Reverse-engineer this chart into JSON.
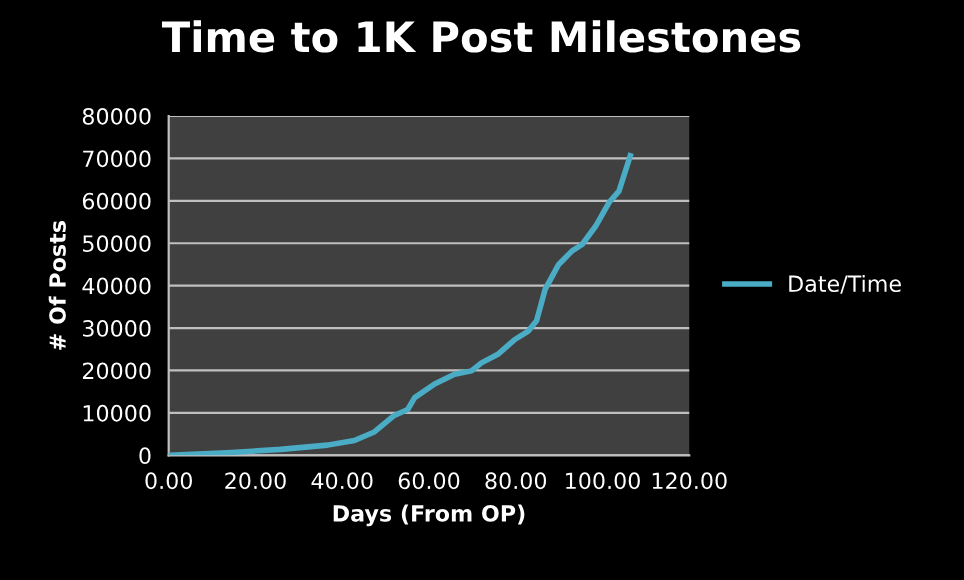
{
  "chart_data": {
    "type": "line",
    "title": "Time to 1K Post Milestones",
    "xlabel": "Days (From OP)",
    "ylabel": "# Of Posts",
    "series": [
      {
        "name": "Date/Time",
        "color": "#4bacc6",
        "x": [
          0,
          13.4,
          25.8,
          36.6,
          42.8,
          47.4,
          52.0,
          55.1,
          56.7,
          61.3,
          65.9,
          69.8,
          72.1,
          76.0,
          79.8,
          82.9,
          84.8,
          86.8,
          89.9,
          93.0,
          95.3,
          98.4,
          101.5,
          103.8,
          106.4
        ],
        "values": [
          0,
          600,
          1400,
          2400,
          3500,
          5500,
          9400,
          10800,
          13600,
          16800,
          19100,
          19900,
          21800,
          23900,
          27300,
          29300,
          31700,
          39200,
          45000,
          48200,
          49700,
          54000,
          59600,
          62300,
          70600
        ]
      }
    ],
    "xlim": [
      0,
      120
    ],
    "xticks": [
      {
        "value": 0,
        "label": "0.00"
      },
      {
        "value": 20,
        "label": "20.00"
      },
      {
        "value": 40,
        "label": "40.00"
      },
      {
        "value": 60,
        "label": "60.00"
      },
      {
        "value": 80,
        "label": "80.00"
      },
      {
        "value": 100,
        "label": "100.00"
      },
      {
        "value": 120,
        "label": "120.00"
      }
    ],
    "ylim": [
      0,
      80000
    ],
    "yticks": [
      0,
      10000,
      20000,
      30000,
      40000,
      50000,
      60000,
      70000,
      80000
    ],
    "grid": "y",
    "legend": "right",
    "marker": "none",
    "line_style": "solid"
  }
}
